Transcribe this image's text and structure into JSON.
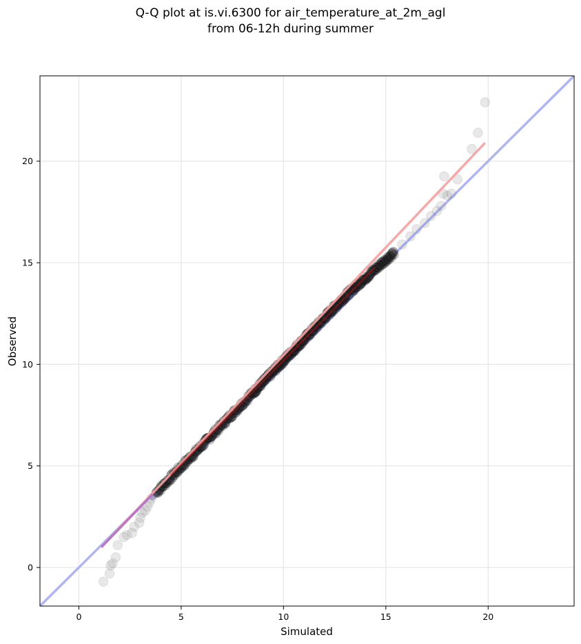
{
  "chart_data": {
    "type": "scatter",
    "title_line1": "Q-Q plot at is.vi.6300 for air_temperature_at_2m_agl",
    "title_line2": "from 06-12h during summer",
    "xlabel": "Simulated",
    "ylabel": "Observed",
    "xlim": [
      -1.9,
      24.2
    ],
    "ylim": [
      -1.9,
      24.2
    ],
    "xticks": [
      0,
      5,
      10,
      15,
      20
    ],
    "yticks": [
      0,
      5,
      10,
      15,
      20
    ],
    "grid": true,
    "reference_line_color": "#aab0f5",
    "fit_line_color": "#f4a0a0",
    "point_color": "#808080",
    "fit_line": {
      "x": [
        1.1,
        19.85
      ],
      "y": [
        1.0,
        20.9
      ]
    },
    "outlier_points": [
      [
        1.2,
        -0.7
      ],
      [
        1.5,
        -0.3
      ],
      [
        1.55,
        0.1
      ],
      [
        1.65,
        0.2
      ],
      [
        1.8,
        0.5
      ],
      [
        1.9,
        1.1
      ],
      [
        2.2,
        1.5
      ],
      [
        2.35,
        1.6
      ],
      [
        2.6,
        1.7
      ],
      [
        2.7,
        2.0
      ],
      [
        2.95,
        2.2
      ],
      [
        3.0,
        2.45
      ],
      [
        3.1,
        2.7
      ],
      [
        3.25,
        2.8
      ],
      [
        3.35,
        3.0
      ],
      [
        3.45,
        3.2
      ],
      [
        3.55,
        3.4
      ],
      [
        3.75,
        3.65
      ],
      [
        3.95,
        3.9
      ],
      [
        4.2,
        4.15
      ],
      [
        15.3,
        15.45
      ],
      [
        15.8,
        15.9
      ],
      [
        16.2,
        16.3
      ],
      [
        16.5,
        16.65
      ],
      [
        16.9,
        16.95
      ],
      [
        17.2,
        17.3
      ],
      [
        17.5,
        17.55
      ],
      [
        17.7,
        17.8
      ],
      [
        17.8,
        18.4
      ],
      [
        18.0,
        18.3
      ],
      [
        17.85,
        19.25
      ],
      [
        18.2,
        18.4
      ],
      [
        18.5,
        19.1
      ],
      [
        19.2,
        20.6
      ],
      [
        19.5,
        21.4
      ],
      [
        19.85,
        22.9
      ]
    ],
    "dense_segments": [
      {
        "x0": 3.8,
        "y0": 3.7,
        "x1": 8.6,
        "y1": 8.7,
        "n": 150
      },
      {
        "x0": 8.6,
        "y0": 8.7,
        "x1": 13.0,
        "y1": 13.35,
        "n": 180
      },
      {
        "x0": 13.0,
        "y0": 13.35,
        "x1": 15.4,
        "y1": 15.5,
        "n": 90
      }
    ]
  }
}
